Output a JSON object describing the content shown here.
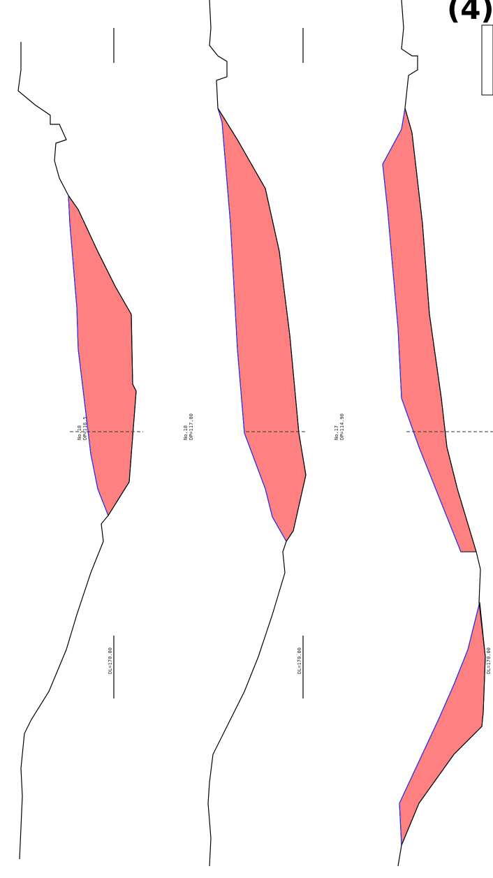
{
  "corner_label": "(4)",
  "sections": [
    {
      "id": "section-1",
      "station": "No.18",
      "station_sub": "DP=116.5",
      "datum": "DL=170.00"
    },
    {
      "id": "section-2",
      "station": "No.18",
      "station_sub": "DP=117.80",
      "datum": "DL=170.00"
    },
    {
      "id": "section-3",
      "station": "No.17",
      "station_sub": "DP=114.90",
      "datum": "DL=170.00"
    }
  ],
  "colors": {
    "cut_fill": "#ff8080",
    "cut_edge": "#2233ff",
    "ground_line": "#000000"
  }
}
